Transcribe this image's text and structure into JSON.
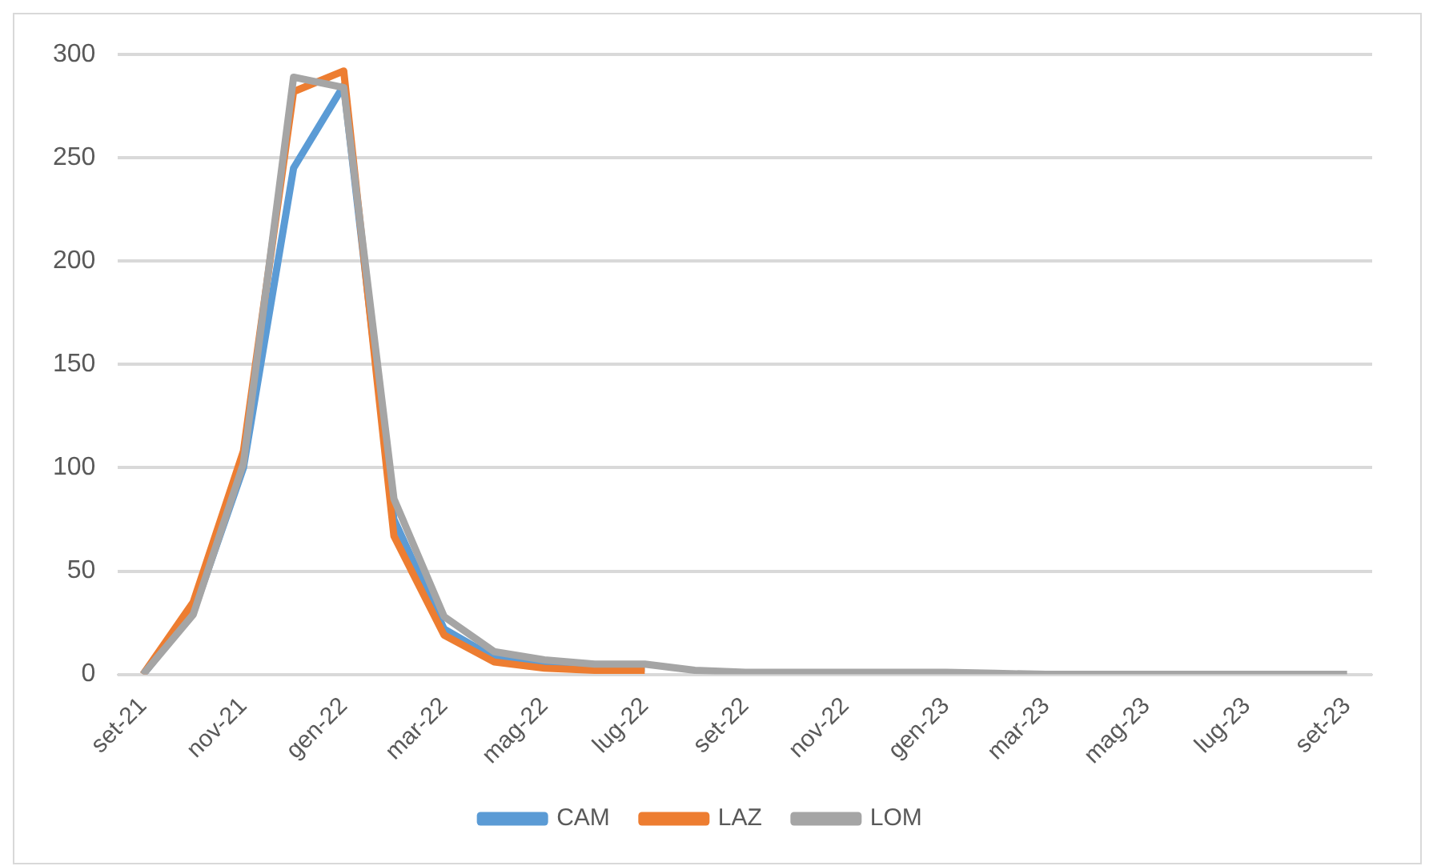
{
  "chart_data": {
    "type": "line",
    "categories": [
      "set-21",
      null,
      "nov-21",
      null,
      "gen-22",
      null,
      "mar-22",
      null,
      "mag-22",
      null,
      "lug-22",
      null,
      "set-22",
      null,
      "nov-22",
      null,
      "gen-23",
      null,
      "mar-23",
      null,
      "mag-23",
      null,
      "lug-23",
      null,
      "set-23"
    ],
    "series": [
      {
        "name": "CAM",
        "color": "#5b9bd5",
        "values": [
          0,
          30,
          100,
          245,
          285,
          75,
          22,
          8,
          5,
          3,
          3,
          null,
          null,
          null,
          null,
          null,
          null,
          null,
          null,
          null,
          null,
          null,
          null,
          null,
          null
        ]
      },
      {
        "name": "LAZ",
        "color": "#ed7d31",
        "values": [
          0,
          35,
          108,
          282,
          292,
          67,
          19,
          6,
          3,
          2,
          2,
          null,
          null,
          null,
          null,
          null,
          null,
          null,
          null,
          null,
          null,
          null,
          null,
          null,
          null
        ]
      },
      {
        "name": "LOM",
        "color": "#a5a5a5",
        "values": [
          0,
          29,
          102,
          289,
          284,
          85,
          28,
          11,
          7,
          5,
          5,
          2,
          1,
          1,
          1,
          1,
          1,
          0.5,
          0,
          0,
          0,
          0,
          0,
          0,
          0
        ]
      }
    ],
    "ylim": [
      0,
      300
    ],
    "yticks": [
      0,
      50,
      100,
      150,
      200,
      250,
      300
    ],
    "grid": "y",
    "legend": "bottom",
    "marker": "none",
    "line_style": "solid"
  }
}
